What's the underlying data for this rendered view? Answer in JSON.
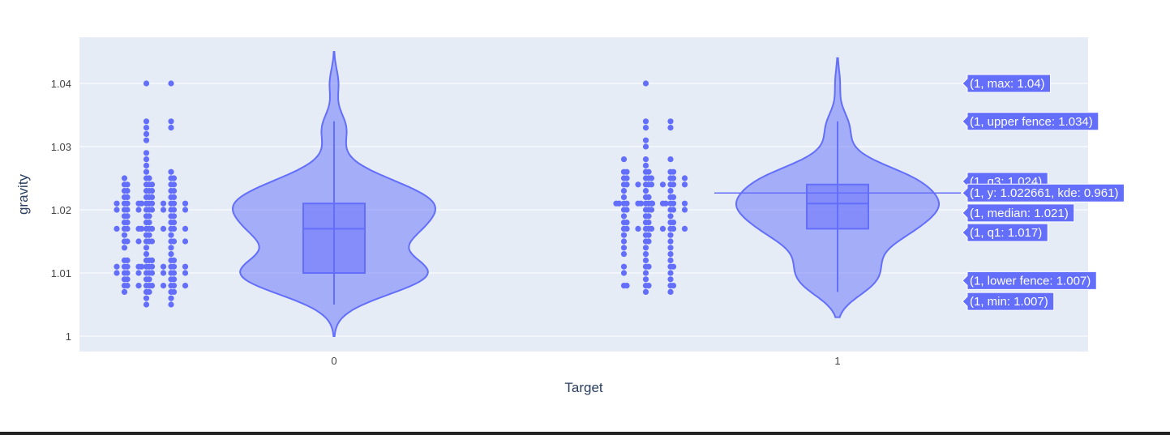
{
  "chart_data": {
    "type": "violin",
    "xlabel": "Target",
    "ylabel": "gravity",
    "categories": [
      "0",
      "1"
    ],
    "ylim": [
      0.9975,
      1.0475
    ],
    "yticks": [
      1,
      1.01,
      1.02,
      1.03,
      1.04
    ],
    "ytick_labels": [
      "1",
      "1.01",
      "1.02",
      "1.03",
      "1.04"
    ],
    "grid": true,
    "plot_background": "#E5ECF6",
    "series_color": "#636EFA",
    "violins": [
      {
        "category": "0",
        "min": 1.005,
        "lower_fence": 1.005,
        "q1": 1.01,
        "median": 1.017,
        "q3": 1.021,
        "upper_fence": 1.034,
        "max": 1.04,
        "kde_range": [
          1.0,
          1.045
        ],
        "points": [
          1.04,
          1.04,
          1.034,
          1.034,
          1.033,
          1.033,
          1.032,
          1.031,
          1.029,
          1.028,
          1.027,
          1.026,
          1.026,
          1.025,
          1.025,
          1.025,
          1.025,
          1.025,
          1.024,
          1.024,
          1.024,
          1.024,
          1.024,
          1.024,
          1.024,
          1.023,
          1.023,
          1.023,
          1.023,
          1.023,
          1.023,
          1.023,
          1.022,
          1.022,
          1.022,
          1.022,
          1.022,
          1.022,
          1.022,
          1.021,
          1.021,
          1.021,
          1.021,
          1.021,
          1.021,
          1.021,
          1.021,
          1.021,
          1.021,
          1.021,
          1.021,
          1.02,
          1.02,
          1.02,
          1.02,
          1.02,
          1.02,
          1.02,
          1.02,
          1.02,
          1.02,
          1.02,
          1.019,
          1.019,
          1.019,
          1.019,
          1.019,
          1.019,
          1.018,
          1.018,
          1.018,
          1.018,
          1.018,
          1.018,
          1.017,
          1.017,
          1.017,
          1.017,
          1.017,
          1.017,
          1.017,
          1.017,
          1.017,
          1.017,
          1.017,
          1.017,
          1.016,
          1.016,
          1.016,
          1.016,
          1.015,
          1.015,
          1.015,
          1.015,
          1.015,
          1.015,
          1.015,
          1.015,
          1.015,
          1.014,
          1.014,
          1.014,
          1.013,
          1.013,
          1.012,
          1.012,
          1.012,
          1.012,
          1.012,
          1.012,
          1.012,
          1.011,
          1.011,
          1.011,
          1.011,
          1.011,
          1.011,
          1.011,
          1.011,
          1.011,
          1.011,
          1.011,
          1.011,
          1.01,
          1.01,
          1.01,
          1.01,
          1.01,
          1.01,
          1.01,
          1.01,
          1.01,
          1.01,
          1.01,
          1.009,
          1.009,
          1.009,
          1.009,
          1.009,
          1.009,
          1.008,
          1.008,
          1.008,
          1.008,
          1.008,
          1.008,
          1.008,
          1.008,
          1.008,
          1.008,
          1.007,
          1.007,
          1.007,
          1.007,
          1.007,
          1.006,
          1.006,
          1.005,
          1.005
        ]
      },
      {
        "category": "1",
        "min": 1.007,
        "lower_fence": 1.007,
        "q1": 1.017,
        "median": 1.021,
        "q3": 1.024,
        "upper_fence": 1.034,
        "max": 1.04,
        "kde_range": [
          1.003,
          1.044
        ],
        "points": [
          1.04,
          1.034,
          1.034,
          1.033,
          1.033,
          1.031,
          1.03,
          1.028,
          1.028,
          1.028,
          1.027,
          1.026,
          1.026,
          1.026,
          1.026,
          1.026,
          1.026,
          1.025,
          1.025,
          1.025,
          1.025,
          1.025,
          1.025,
          1.025,
          1.025,
          1.024,
          1.024,
          1.024,
          1.024,
          1.024,
          1.024,
          1.024,
          1.024,
          1.024,
          1.024,
          1.023,
          1.023,
          1.023,
          1.022,
          1.022,
          1.022,
          1.022,
          1.022,
          1.021,
          1.021,
          1.021,
          1.021,
          1.021,
          1.021,
          1.021,
          1.021,
          1.021,
          1.021,
          1.021,
          1.021,
          1.021,
          1.021,
          1.021,
          1.02,
          1.02,
          1.02,
          1.02,
          1.02,
          1.02,
          1.02,
          1.02,
          1.019,
          1.019,
          1.019,
          1.019,
          1.018,
          1.018,
          1.018,
          1.018,
          1.018,
          1.018,
          1.017,
          1.017,
          1.017,
          1.017,
          1.017,
          1.017,
          1.017,
          1.017,
          1.017,
          1.017,
          1.016,
          1.016,
          1.016,
          1.016,
          1.015,
          1.015,
          1.015,
          1.015,
          1.014,
          1.014,
          1.014,
          1.013,
          1.013,
          1.013,
          1.012,
          1.012,
          1.011,
          1.011,
          1.011,
          1.011,
          1.011,
          1.01,
          1.01,
          1.01,
          1.009,
          1.009,
          1.008,
          1.008,
          1.008,
          1.008,
          1.008,
          1.008,
          1.007,
          1.007
        ]
      }
    ],
    "hover_labels": [
      {
        "text": "(1, max: 1.04)",
        "y": 1.04
      },
      {
        "text": "(1, upper fence: 1.034)",
        "y": 1.034
      },
      {
        "text": "(1, q3: 1.024)",
        "y": 1.0245
      },
      {
        "text": "(1, y: 1.022661, kde: 0.961)",
        "y": 1.022661
      },
      {
        "text": "(1, median: 1.021)",
        "y": 1.0195
      },
      {
        "text": "(1, q1: 1.017)",
        "y": 1.0164
      },
      {
        "text": "(1, lower fence: 1.007)",
        "y": 1.0088
      },
      {
        "text": "(1, min: 1.007)",
        "y": 1.0055
      }
    ]
  }
}
